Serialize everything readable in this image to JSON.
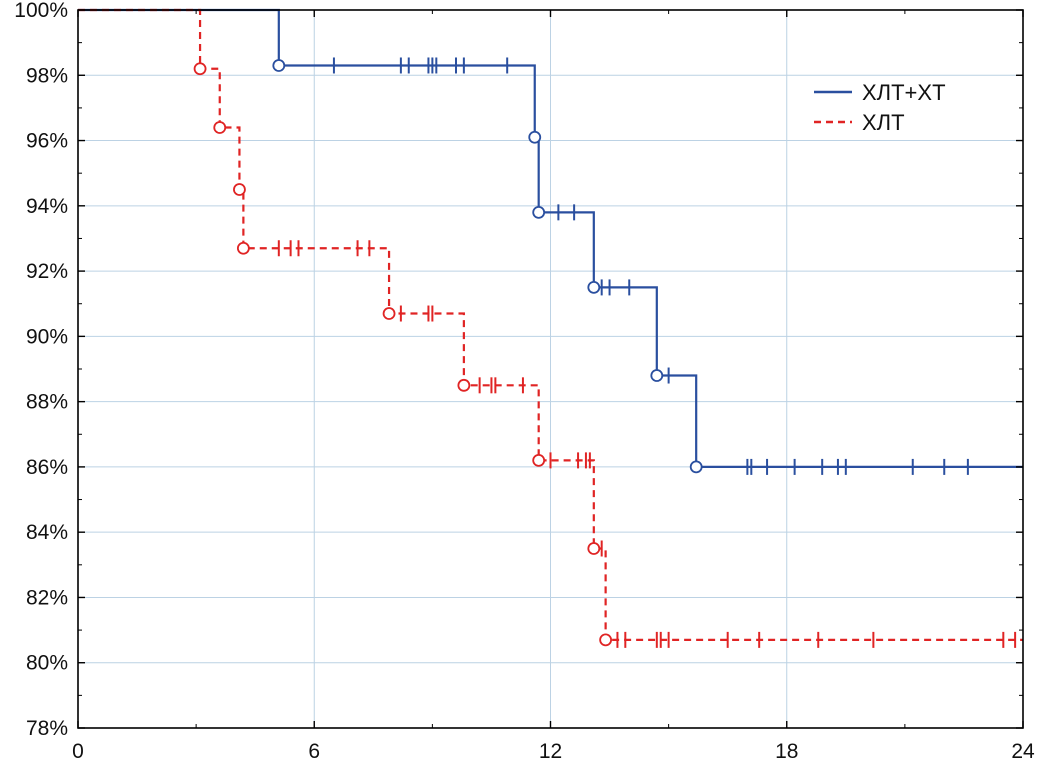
{
  "chart_data": {
    "type": "line",
    "subtype": "kaplan-meier-step",
    "title": "",
    "xlabel": "",
    "ylabel": "",
    "xlim": [
      0,
      24
    ],
    "ylim": [
      78,
      100
    ],
    "x_ticks": [
      0,
      6,
      12,
      18,
      24
    ],
    "x_tick_labels": [
      "0",
      "6",
      "12",
      "18",
      "24"
    ],
    "y_ticks": [
      78,
      80,
      82,
      84,
      86,
      88,
      90,
      92,
      94,
      96,
      98,
      100
    ],
    "y_tick_labels": [
      "78%",
      "80%",
      "82%",
      "84%",
      "86%",
      "88%",
      "90%",
      "92%",
      "94%",
      "96%",
      "98%",
      "100%"
    ],
    "grid": true,
    "legend_position": "top-right",
    "series": [
      {
        "name": "ХЛТ+ХТ",
        "color": "#2a4f9f",
        "line_style": "solid",
        "steps": [
          [
            0,
            100
          ],
          [
            5.1,
            98.3
          ],
          [
            11.6,
            96.1
          ],
          [
            11.7,
            93.8
          ],
          [
            13.1,
            91.5
          ],
          [
            14.7,
            88.8
          ],
          [
            15.7,
            86.0
          ],
          [
            24,
            86.0
          ]
        ],
        "events": [
          [
            5.1,
            98.3
          ],
          [
            11.6,
            96.1
          ],
          [
            11.7,
            93.8
          ],
          [
            13.1,
            91.5
          ],
          [
            14.7,
            88.8
          ],
          [
            15.7,
            86.0
          ]
        ],
        "censored": [
          [
            6.5,
            98.3
          ],
          [
            8.2,
            98.3
          ],
          [
            8.4,
            98.3
          ],
          [
            8.9,
            98.3
          ],
          [
            9.0,
            98.3
          ],
          [
            9.1,
            98.3
          ],
          [
            9.6,
            98.3
          ],
          [
            9.8,
            98.3
          ],
          [
            10.9,
            98.3
          ],
          [
            12.2,
            93.8
          ],
          [
            12.6,
            93.8
          ],
          [
            13.3,
            91.5
          ],
          [
            13.5,
            91.5
          ],
          [
            14.0,
            91.5
          ],
          [
            15.0,
            88.8
          ],
          [
            17.0,
            86.0
          ],
          [
            17.1,
            86.0
          ],
          [
            17.5,
            86.0
          ],
          [
            18.2,
            86.0
          ],
          [
            18.9,
            86.0
          ],
          [
            19.3,
            86.0
          ],
          [
            19.5,
            86.0
          ],
          [
            21.2,
            86.0
          ],
          [
            22.0,
            86.0
          ],
          [
            22.6,
            86.0
          ]
        ]
      },
      {
        "name": "ХЛТ",
        "color": "#e02424",
        "line_style": "dashed",
        "steps": [
          [
            0,
            100
          ],
          [
            3.1,
            98.2
          ],
          [
            3.6,
            96.4
          ],
          [
            4.1,
            94.5
          ],
          [
            4.2,
            92.7
          ],
          [
            7.9,
            90.7
          ],
          [
            9.8,
            88.5
          ],
          [
            11.7,
            86.2
          ],
          [
            13.1,
            83.5
          ],
          [
            13.4,
            80.7
          ],
          [
            24,
            80.7
          ]
        ],
        "events": [
          [
            3.1,
            98.2
          ],
          [
            3.6,
            96.4
          ],
          [
            4.1,
            94.5
          ],
          [
            4.2,
            92.7
          ],
          [
            7.9,
            90.7
          ],
          [
            9.8,
            88.5
          ],
          [
            11.7,
            86.2
          ],
          [
            13.1,
            83.5
          ],
          [
            13.4,
            80.7
          ]
        ],
        "censored": [
          [
            5.1,
            92.7
          ],
          [
            5.4,
            92.7
          ],
          [
            5.6,
            92.7
          ],
          [
            7.1,
            92.7
          ],
          [
            7.4,
            92.7
          ],
          [
            8.2,
            90.7
          ],
          [
            8.9,
            90.7
          ],
          [
            9.0,
            90.7
          ],
          [
            10.2,
            88.5
          ],
          [
            10.5,
            88.5
          ],
          [
            10.6,
            88.5
          ],
          [
            11.3,
            88.5
          ],
          [
            12.0,
            86.2
          ],
          [
            12.7,
            86.2
          ],
          [
            12.9,
            86.2
          ],
          [
            13.0,
            86.2
          ],
          [
            13.3,
            83.5
          ],
          [
            13.7,
            80.7
          ],
          [
            13.9,
            80.7
          ],
          [
            14.7,
            80.7
          ],
          [
            14.8,
            80.7
          ],
          [
            15.0,
            80.7
          ],
          [
            16.5,
            80.7
          ],
          [
            17.3,
            80.7
          ],
          [
            18.8,
            80.7
          ],
          [
            20.2,
            80.7
          ],
          [
            23.5,
            80.7
          ],
          [
            23.8,
            80.7
          ]
        ]
      }
    ]
  }
}
